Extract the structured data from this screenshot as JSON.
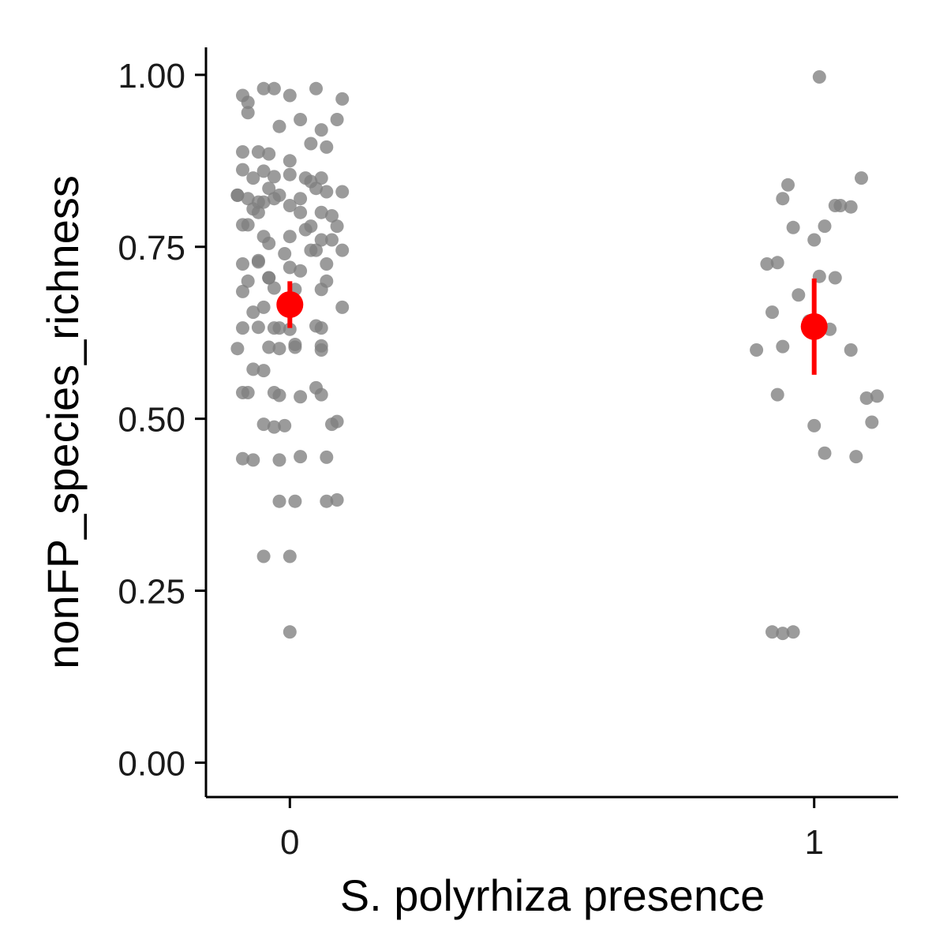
{
  "chart_data": {
    "type": "scatter",
    "title": "",
    "xlabel": "S. polyrhiza presence",
    "ylabel": "nonFP_species_richness",
    "x_ticks": [
      "0",
      "1"
    ],
    "y_ticks": [
      "0.00",
      "0.25",
      "0.50",
      "0.75",
      "1.00"
    ],
    "xlim": [
      -0.16,
      1.16
    ],
    "ylim": [
      -0.05,
      1.04
    ],
    "grid": false,
    "legend": "none",
    "point_color": "#7f7f7f",
    "summary_color": "#ff0000",
    "series": [
      {
        "x": [
          -0.09,
          -0.08,
          -0.05,
          -0.03,
          -0.08,
          0.0,
          0.05,
          0.02,
          0.1,
          0.09,
          -0.09,
          -0.04,
          -0.06,
          -0.09,
          -0.02,
          0.04,
          0.07,
          0.06,
          -0.05,
          -0.03,
          0.0,
          0.04,
          -0.07,
          -0.08,
          0.03,
          -0.1,
          -0.02,
          0.05,
          0.06,
          0.0,
          -0.04,
          0.07,
          0.02,
          0.1,
          -0.1,
          -0.06,
          0.08,
          0.04,
          0.02,
          -0.05,
          -0.06,
          -0.03,
          0.0,
          0.06,
          -0.07,
          0.09,
          -0.08,
          -0.05,
          0.0,
          0.03,
          0.06,
          -0.09,
          0.08,
          -0.04,
          0.04,
          -0.01,
          -0.06,
          0.02,
          0.05,
          -0.04,
          0.1,
          -0.09,
          -0.06,
          0.07,
          0.0,
          -0.08,
          -0.04,
          -0.03,
          0.07,
          0.01,
          0.06,
          -0.09,
          0.1,
          -0.07,
          -0.03,
          0.05,
          -0.05,
          0.0,
          -0.09,
          -0.06,
          -0.02,
          0.01,
          0.06,
          -0.1,
          -0.04,
          -0.02,
          0.01,
          0.06,
          0.06,
          -0.07,
          -0.05,
          -0.09,
          -0.03,
          0.02,
          0.06,
          -0.08,
          -0.02,
          0.05,
          -0.05,
          -0.03,
          -0.01,
          0.09,
          0.08,
          -0.09,
          -0.07,
          -0.02,
          0.02,
          0.07,
          -0.02,
          0.01,
          0.07,
          0.09,
          0.0,
          -0.05,
          0.0
        ],
        "y": [
          0.97,
          0.945,
          0.98,
          0.98,
          0.96,
          0.97,
          0.98,
          0.935,
          0.965,
          0.935,
          0.888,
          0.885,
          0.888,
          0.862,
          0.925,
          0.9,
          0.895,
          0.92,
          0.86,
          0.852,
          0.875,
          0.845,
          0.85,
          0.82,
          0.85,
          0.825,
          0.825,
          0.835,
          0.85,
          0.855,
          0.835,
          0.83,
          0.82,
          0.83,
          0.825,
          0.815,
          0.795,
          0.78,
          0.8,
          0.815,
          0.8,
          0.82,
          0.81,
          0.8,
          0.805,
          0.78,
          0.782,
          0.765,
          0.765,
          0.775,
          0.76,
          0.782,
          0.76,
          0.755,
          0.745,
          0.74,
          0.73,
          0.715,
          0.745,
          0.705,
          0.745,
          0.725,
          0.728,
          0.725,
          0.72,
          0.7,
          0.705,
          0.69,
          0.7,
          0.688,
          0.688,
          0.685,
          0.662,
          0.655,
          0.632,
          0.635,
          0.662,
          0.63,
          0.632,
          0.633,
          0.632,
          0.608,
          0.632,
          0.602,
          0.604,
          0.602,
          0.604,
          0.6,
          0.606,
          0.572,
          0.57,
          0.538,
          0.538,
          0.532,
          0.535,
          0.538,
          0.534,
          0.545,
          0.492,
          0.488,
          0.49,
          0.496,
          0.492,
          0.442,
          0.44,
          0.44,
          0.445,
          0.444,
          0.38,
          0.38,
          0.38,
          0.382,
          0.3,
          0.3,
          0.19
        ],
        "note_x0": ""
      },
      {
        "x": [
          1.01,
          0.95,
          0.94,
          1.09,
          1.04,
          1.02,
          1.07,
          1.05,
          0.93,
          1.0,
          0.96,
          0.91,
          1.01,
          1.04,
          0.89,
          0.92,
          0.97,
          0.99,
          1.03,
          0.94,
          1.07,
          1.1,
          1.12,
          1.11,
          1.0,
          0.93,
          1.02,
          1.08,
          0.96,
          0.92,
          0.94
        ],
        "y": [
          0.997,
          0.84,
          0.82,
          0.85,
          0.81,
          0.78,
          0.808,
          0.81,
          0.727,
          0.76,
          0.778,
          0.725,
          0.707,
          0.705,
          0.6,
          0.655,
          0.68,
          0.642,
          0.63,
          0.605,
          0.6,
          0.53,
          0.533,
          0.495,
          0.49,
          0.535,
          0.45,
          0.445,
          0.19,
          0.19,
          0.188
        ]
      }
    ],
    "summary": [
      {
        "x": 0,
        "mean": 0.666,
        "lower": 0.632,
        "upper": 0.7
      },
      {
        "x": 1,
        "mean": 0.634,
        "lower": 0.564,
        "upper": 0.704
      }
    ]
  }
}
